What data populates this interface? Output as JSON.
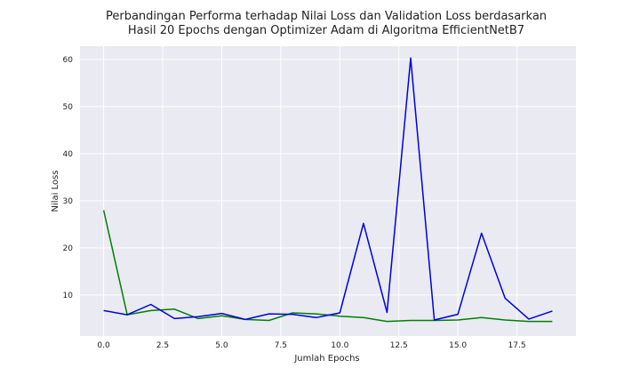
{
  "chart_data": {
    "type": "line",
    "title_lines": [
      "Perbandingan Performa terhadap Nilai Loss dan Validation Loss berdasarkan",
      "Hasil 20 Epochs dengan Optimizer Adam di Algoritma EfficientNetB7"
    ],
    "xlabel": "Jumlah Epochs",
    "ylabel": "Nilai Loss",
    "x": [
      0,
      1,
      2,
      3,
      4,
      5,
      6,
      7,
      8,
      9,
      10,
      11,
      12,
      13,
      14,
      15,
      16,
      17,
      18,
      19
    ],
    "xlim": [
      -1,
      20
    ],
    "ylim": [
      1.3,
      62.8
    ],
    "xticks": [
      0.0,
      2.5,
      5.0,
      7.5,
      10.0,
      12.5,
      15.0,
      17.5
    ],
    "xtick_labels": [
      "0.0",
      "2.5",
      "5.0",
      "7.5",
      "10.0",
      "12.5",
      "15.0",
      "17.5"
    ],
    "yticks": [
      10,
      20,
      30,
      40,
      50,
      60
    ],
    "ytick_labels": [
      "10",
      "20",
      "30",
      "40",
      "50",
      "60"
    ],
    "grid": true,
    "background": "#eaeaf2",
    "series": [
      {
        "color": "#008000",
        "values": [
          28.0,
          5.8,
          6.7,
          7.0,
          5.0,
          5.6,
          4.8,
          4.6,
          6.2,
          6.0,
          5.5,
          5.2,
          4.4,
          4.6,
          4.6,
          4.7,
          5.2,
          4.7,
          4.4,
          4.4
        ]
      },
      {
        "color": "#0000e0",
        "values": [
          6.7,
          5.8,
          8.0,
          5.0,
          5.4,
          6.1,
          4.8,
          6.0,
          5.9,
          5.2,
          6.2,
          25.2,
          6.3,
          60.3,
          4.7,
          5.9,
          23.1,
          9.3,
          4.9,
          6.6
        ]
      }
    ]
  }
}
